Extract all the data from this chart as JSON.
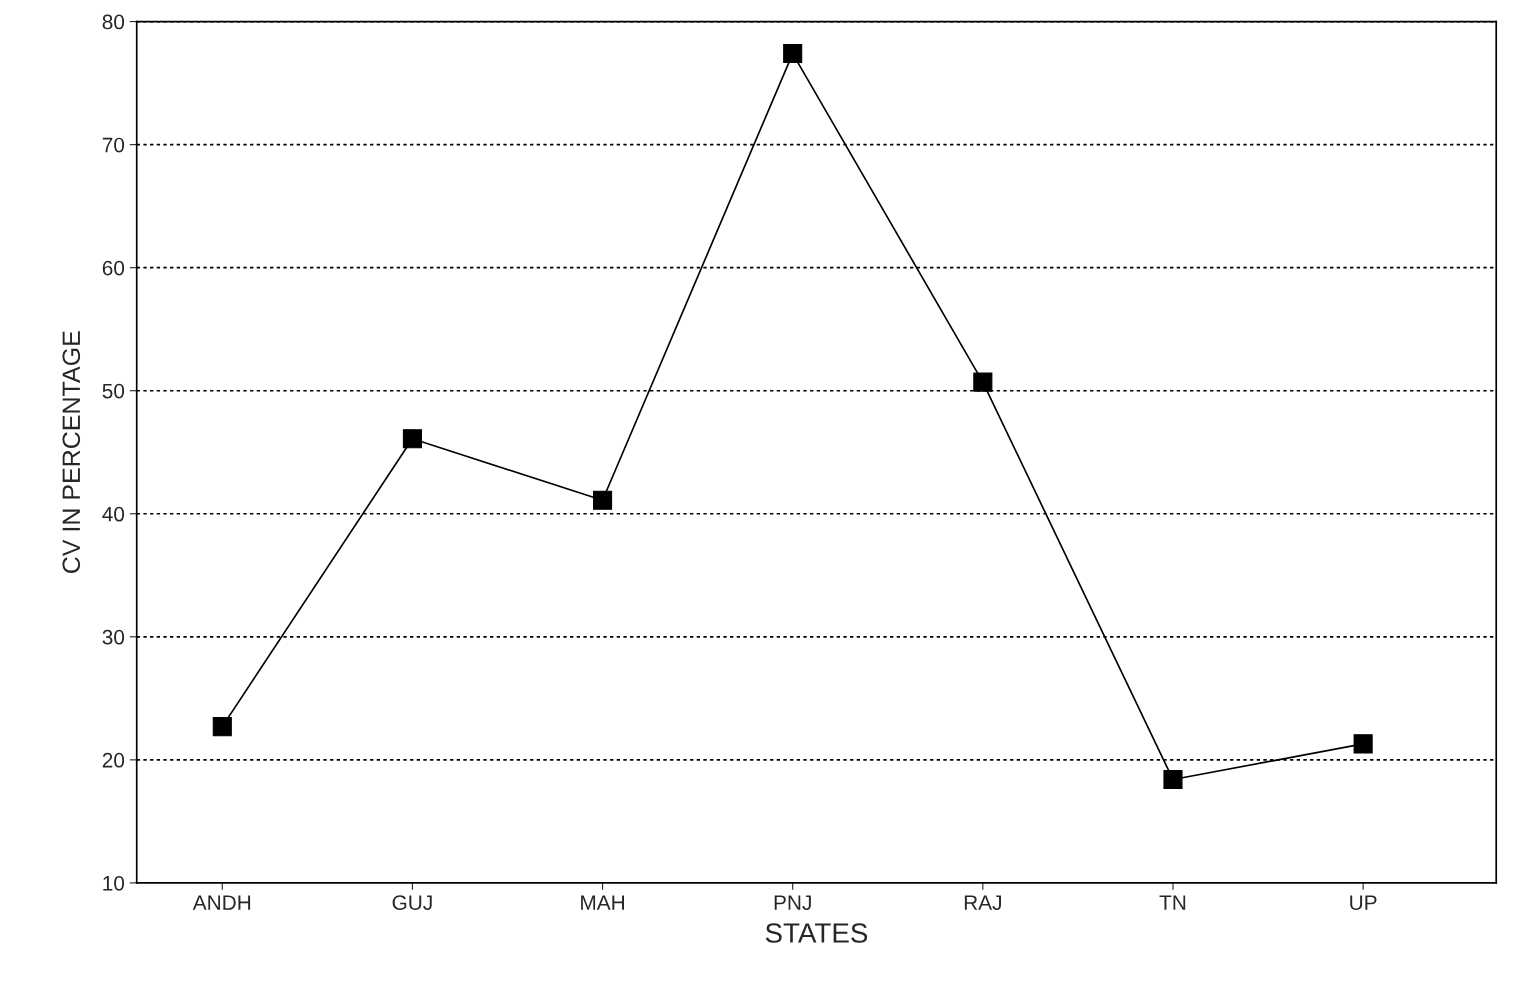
{
  "chart_data": {
    "type": "line",
    "xlabel": "STATES",
    "ylabel": "CV IN PERCENTAGE",
    "categories": [
      "ANDH",
      "GUJ",
      "MAH",
      "PNJ",
      "RAJ",
      "TN",
      "UP"
    ],
    "series": [
      {
        "color": "#000000",
        "values": [
          22.7,
          46.1,
          41.1,
          77.4,
          50.7,
          18.4,
          21.3
        ]
      }
    ],
    "ylim": [
      10,
      80
    ],
    "yticks": [
      10,
      20,
      30,
      40,
      50,
      60,
      70,
      80
    ],
    "grid": "y",
    "marker": "square",
    "line_style": "solid"
  }
}
